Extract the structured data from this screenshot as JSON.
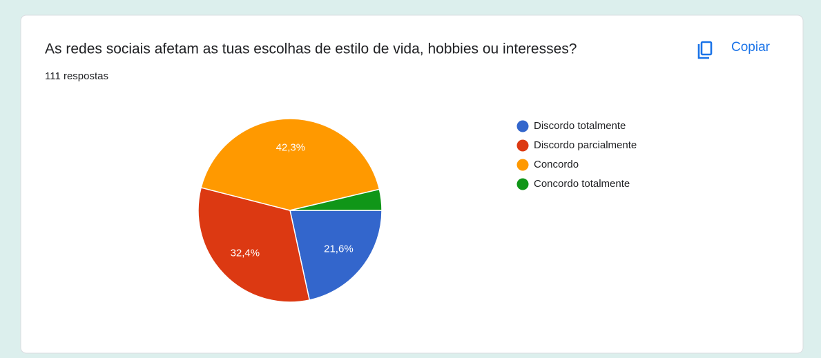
{
  "copy_label": "Copiar",
  "chart_data": {
    "type": "pie",
    "title": "As redes sociais afetam as tuas escolhas de estilo de vida, hobbies ou interesses?",
    "subtitle": "111 respostas",
    "categories": [
      "Discordo totalmente",
      "Discordo parcialmente",
      "Concordo",
      "Concordo totalmente"
    ],
    "values": [
      21.6,
      32.4,
      42.3,
      3.7
    ],
    "value_labels": [
      "21,6%",
      "32,4%",
      "42,3%",
      null
    ],
    "colors": [
      "#3366cc",
      "#dc3912",
      "#ff9900",
      "#109618"
    ],
    "legend": "right"
  }
}
